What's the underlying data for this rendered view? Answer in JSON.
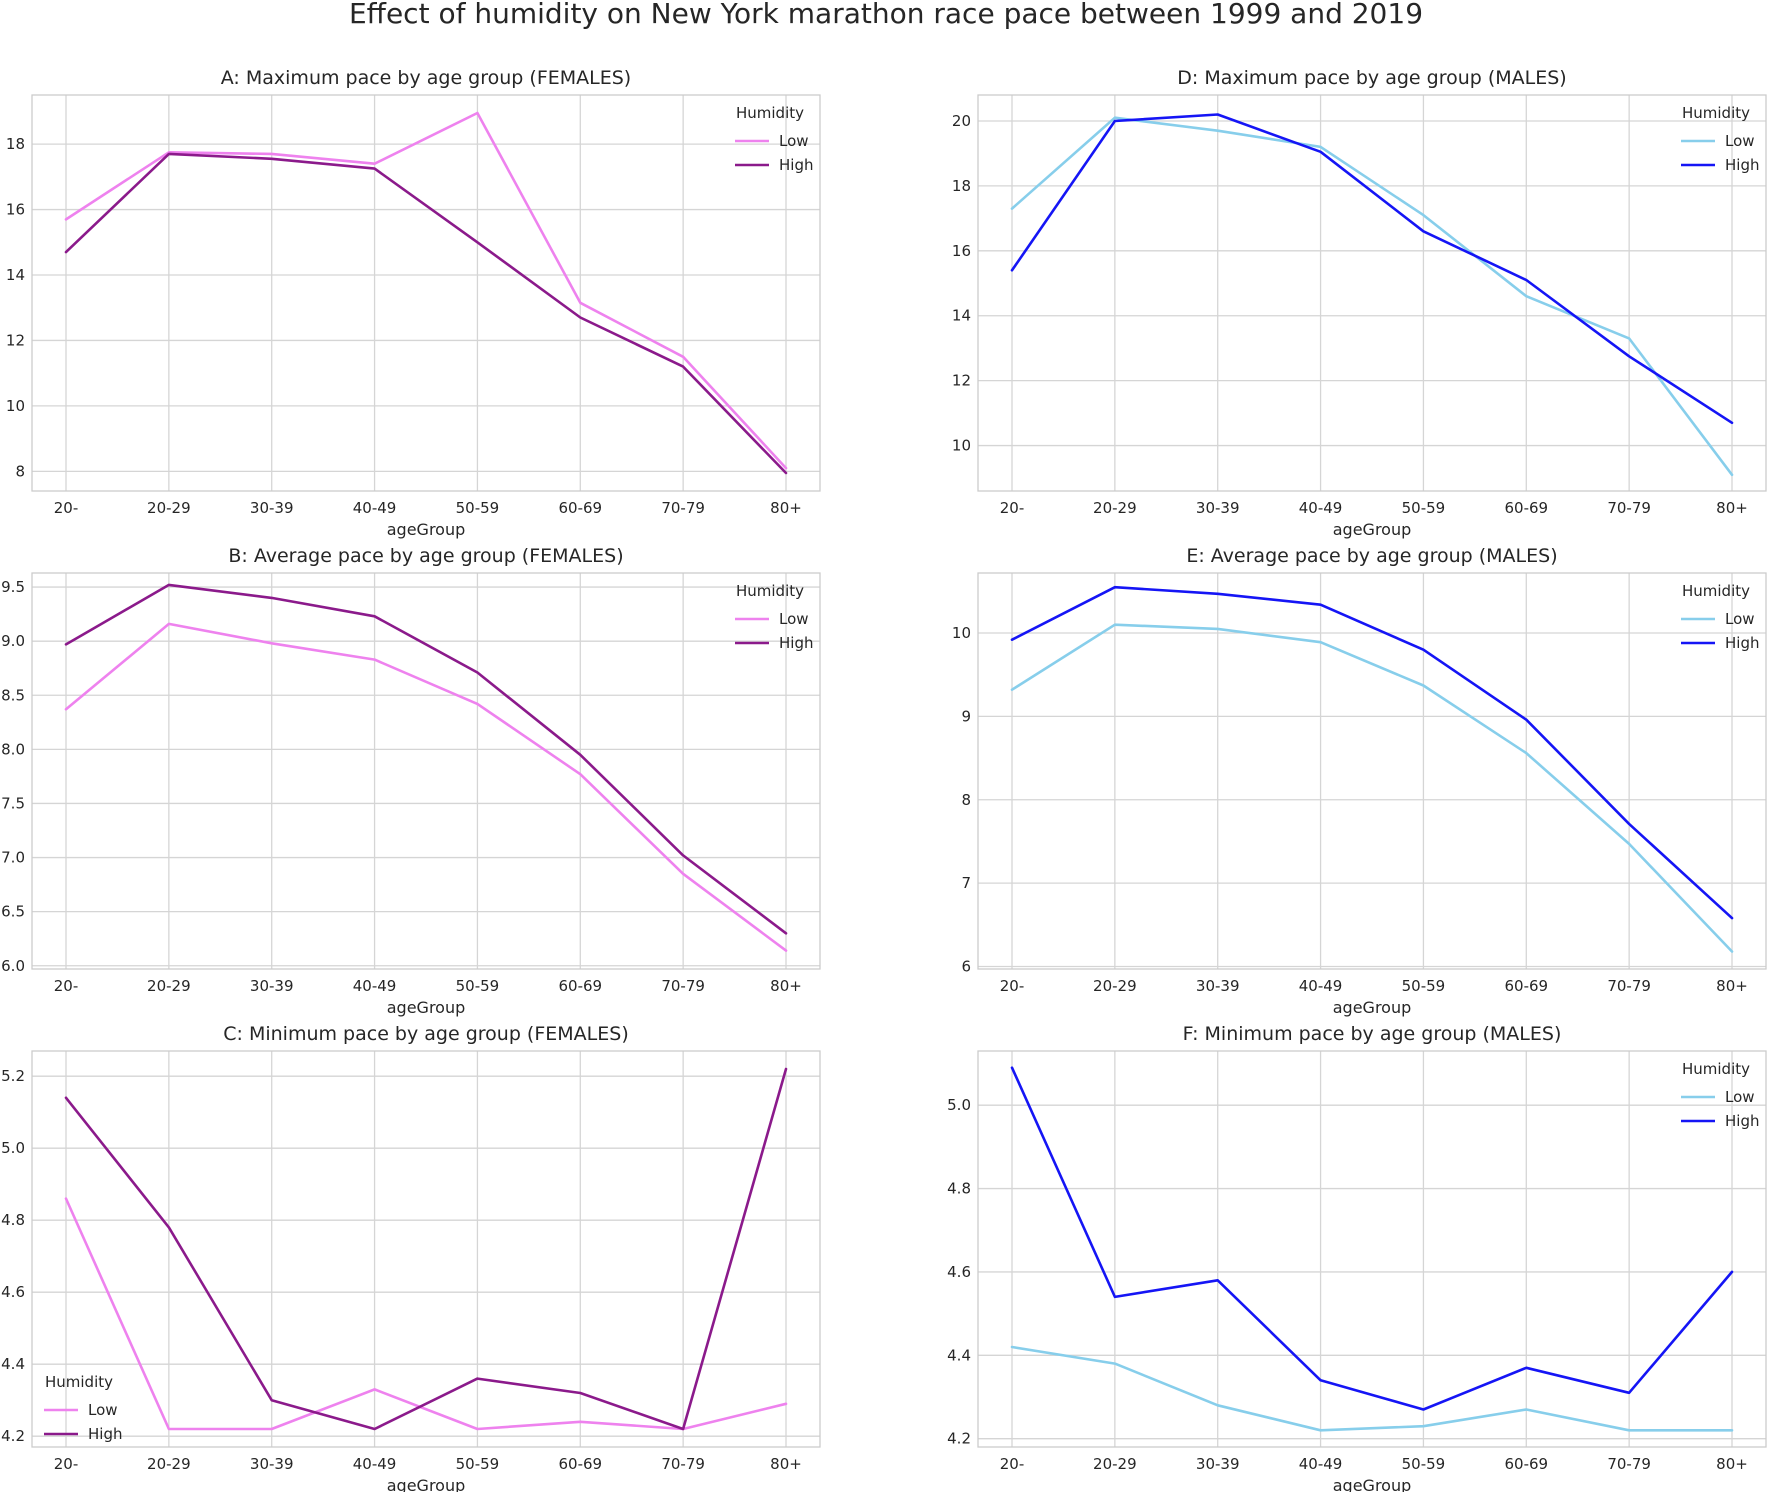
{
  "figure": {
    "title": "Effect of humidity on New York marathon race pace between 1999 and 2019"
  },
  "chart_data": [
    {
      "id": "A",
      "type": "line",
      "title": "A: Maximum pace by age group (FEMALES)",
      "xlabel": "ageGroup",
      "ylabel": "",
      "categories": [
        "20-",
        "20-29",
        "30-39",
        "40-49",
        "50-59",
        "60-69",
        "70-79",
        "80+"
      ],
      "ylim": [
        7.4,
        19.5
      ],
      "yticks": [
        "8",
        "10",
        "12",
        "14",
        "16",
        "18"
      ],
      "legend": {
        "title": "Humidity",
        "position": "top-right"
      },
      "series": [
        {
          "name": "Low",
          "color": "#ee82ee",
          "values": [
            15.7,
            17.75,
            17.7,
            17.4,
            18.95,
            13.15,
            11.5,
            8.1
          ]
        },
        {
          "name": "High",
          "color": "#8b1a8b",
          "values": [
            14.7,
            17.7,
            17.55,
            17.25,
            15.0,
            12.7,
            11.2,
            7.95
          ]
        }
      ]
    },
    {
      "id": "D",
      "type": "line",
      "title": "D: Maximum pace by age group (MALES)",
      "xlabel": "ageGroup",
      "ylabel": "",
      "categories": [
        "20-",
        "20-29",
        "30-39",
        "40-49",
        "50-59",
        "60-69",
        "70-79",
        "80+"
      ],
      "ylim": [
        8.6,
        20.8
      ],
      "yticks": [
        "10",
        "12",
        "14",
        "16",
        "18",
        "20"
      ],
      "legend": {
        "title": "Humidity",
        "position": "top-right"
      },
      "series": [
        {
          "name": "Low",
          "color": "#87ceeb",
          "values": [
            17.3,
            20.1,
            19.7,
            19.2,
            17.1,
            14.6,
            13.3,
            9.1
          ]
        },
        {
          "name": "High",
          "color": "#1515f5",
          "values": [
            15.4,
            20.0,
            20.2,
            19.05,
            16.6,
            15.1,
            12.75,
            10.7
          ]
        }
      ]
    },
    {
      "id": "B",
      "type": "line",
      "title": "B: Average pace by age group (FEMALES)",
      "xlabel": "ageGroup",
      "ylabel": "",
      "categories": [
        "20-",
        "20-29",
        "30-39",
        "40-49",
        "50-59",
        "60-69",
        "70-79",
        "80+"
      ],
      "ylim": [
        5.97,
        9.63
      ],
      "yticks": [
        "6.0",
        "6.5",
        "7.0",
        "7.5",
        "8.0",
        "8.5",
        "9.0",
        "9.5"
      ],
      "legend": {
        "title": "Humidity",
        "position": "top-right"
      },
      "series": [
        {
          "name": "Low",
          "color": "#ee82ee",
          "values": [
            8.37,
            9.16,
            8.98,
            8.83,
            8.42,
            7.77,
            6.85,
            6.14
          ]
        },
        {
          "name": "High",
          "color": "#8b1a8b",
          "values": [
            8.97,
            9.52,
            9.4,
            9.23,
            8.71,
            7.95,
            7.02,
            6.3
          ]
        }
      ]
    },
    {
      "id": "E",
      "type": "line",
      "title": "E: Average pace by age group (MALES)",
      "xlabel": "ageGroup",
      "ylabel": "",
      "categories": [
        "20-",
        "20-29",
        "30-39",
        "40-49",
        "50-59",
        "60-69",
        "70-79",
        "80+"
      ],
      "ylim": [
        5.97,
        10.72
      ],
      "yticks": [
        "6",
        "7",
        "8",
        "9",
        "10"
      ],
      "legend": {
        "title": "Humidity",
        "position": "top-right"
      },
      "series": [
        {
          "name": "Low",
          "color": "#87ceeb",
          "values": [
            9.32,
            10.1,
            10.05,
            9.89,
            9.37,
            8.56,
            7.47,
            6.18
          ]
        },
        {
          "name": "High",
          "color": "#1515f5",
          "values": [
            9.92,
            10.55,
            10.47,
            10.34,
            9.8,
            8.96,
            7.71,
            6.58
          ]
        }
      ]
    },
    {
      "id": "C",
      "type": "line",
      "title": "C: Minimum pace by age group (FEMALES)",
      "xlabel": "ageGroup",
      "ylabel": "",
      "categories": [
        "20-",
        "20-29",
        "30-39",
        "40-49",
        "50-59",
        "60-69",
        "70-79",
        "80+"
      ],
      "ylim": [
        4.17,
        5.27
      ],
      "yticks": [
        "4.2",
        "4.4",
        "4.6",
        "4.8",
        "5.0",
        "5.2"
      ],
      "legend": {
        "title": "Humidity",
        "position": "bottom-left"
      },
      "series": [
        {
          "name": "Low",
          "color": "#ee82ee",
          "values": [
            4.86,
            4.22,
            4.22,
            4.33,
            4.22,
            4.24,
            4.22,
            4.29
          ]
        },
        {
          "name": "High",
          "color": "#8b1a8b",
          "values": [
            5.14,
            4.78,
            4.3,
            4.22,
            4.36,
            4.32,
            4.22,
            5.22
          ]
        }
      ]
    },
    {
      "id": "F",
      "type": "line",
      "title": "F: Minimum pace by age group (MALES)",
      "xlabel": "ageGroup",
      "ylabel": "",
      "categories": [
        "20-",
        "20-29",
        "30-39",
        "40-49",
        "50-59",
        "60-69",
        "70-79",
        "80+"
      ],
      "ylim": [
        4.18,
        5.13
      ],
      "yticks": [
        "4.2",
        "4.4",
        "4.6",
        "4.8",
        "5.0"
      ],
      "legend": {
        "title": "Humidity",
        "position": "top-right"
      },
      "series": [
        {
          "name": "Low",
          "color": "#87ceeb",
          "values": [
            4.42,
            4.38,
            4.28,
            4.22,
            4.23,
            4.27,
            4.22,
            4.22
          ]
        },
        {
          "name": "High",
          "color": "#1515f5",
          "values": [
            5.09,
            4.54,
            4.58,
            4.34,
            4.27,
            4.37,
            4.31,
            4.6
          ]
        }
      ]
    }
  ]
}
